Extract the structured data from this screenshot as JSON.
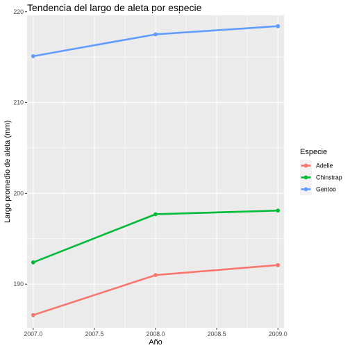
{
  "chart_data": {
    "type": "line",
    "title": "Tendencia del largo de aleta por especie",
    "xlabel": "Año",
    "ylabel": "Largo promedio de aleta (mm)",
    "xlim": [
      2006.95,
      2009.05
    ],
    "ylim": [
      185.2,
      219.6
    ],
    "x_ticks": [
      2007.0,
      2007.5,
      2008.0,
      2008.5,
      2009.0
    ],
    "x_tick_labels": [
      "2007.0",
      "2007.5",
      "2008.0",
      "2008.5",
      "2009.0"
    ],
    "y_ticks": [
      190,
      200,
      210,
      220
    ],
    "y_tick_labels": [
      "190",
      "200",
      "210",
      "220"
    ],
    "grid": true,
    "legend": {
      "title": "Especie",
      "position": "right",
      "entries": [
        "Adelie",
        "Chinstrap",
        "Gentoo"
      ]
    },
    "x": [
      2007,
      2008,
      2009
    ],
    "series": [
      {
        "name": "Adelie",
        "color": "#F8766D",
        "values": [
          186.6,
          191.0,
          192.1
        ]
      },
      {
        "name": "Chinstrap",
        "color": "#00BA38",
        "values": [
          192.4,
          197.7,
          198.1
        ]
      },
      {
        "name": "Gentoo",
        "color": "#619CFF",
        "values": [
          215.1,
          217.5,
          218.4
        ]
      }
    ]
  }
}
